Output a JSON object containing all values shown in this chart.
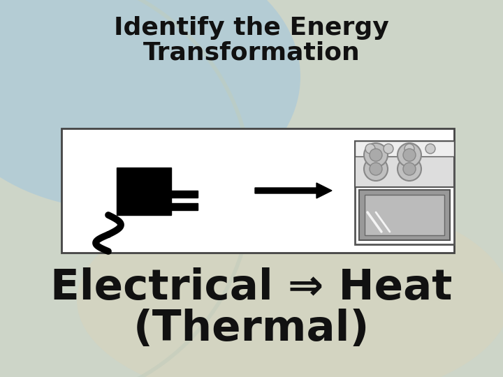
{
  "title_line1": "Identify the Energy",
  "title_line2": "Transformation",
  "answer_line1": "Electrical ⇒ Heat",
  "answer_line2": "(Thermal)",
  "title_fontsize": 26,
  "answer_fontsize": 44,
  "text_color": "#111111",
  "bg_base": "#cdd5c8",
  "bg_blue": "#a8c8dc",
  "bg_beige": "#d8d4bc",
  "box_edge": "#444444"
}
